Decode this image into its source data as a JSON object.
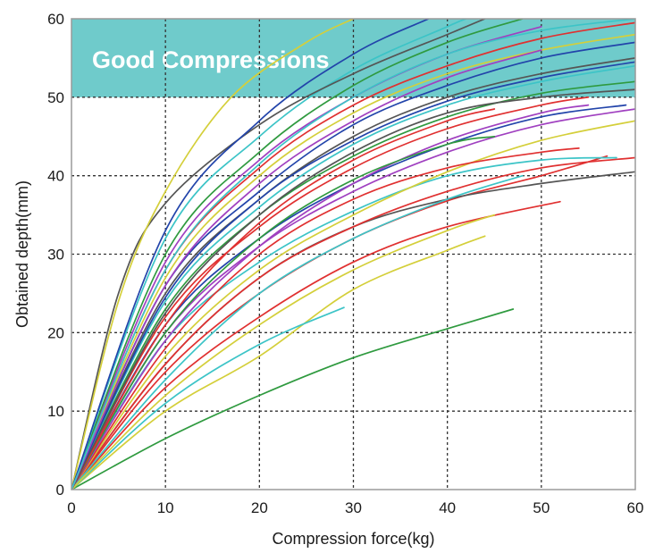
{
  "chart_data": {
    "type": "line",
    "title": "",
    "xlabel": "Compression force(kg)",
    "ylabel": "Obtained depth(mm)",
    "xlim": [
      0,
      60
    ],
    "ylim": [
      0,
      60
    ],
    "xticks": [
      0,
      10,
      20,
      30,
      40,
      50,
      60
    ],
    "yticks": [
      0,
      10,
      20,
      30,
      40,
      50,
      60
    ],
    "grid": true,
    "legend": "none",
    "annotation": {
      "text": "Good Compressions",
      "y_from": 50,
      "y_to": 60,
      "color": "#6fcbcb"
    },
    "series": [
      {
        "color": "#2f9a3f",
        "points": [
          [
            0,
            0
          ],
          [
            10,
            6.5
          ],
          [
            20,
            12
          ],
          [
            30,
            16.8
          ],
          [
            40,
            20.5
          ],
          [
            47,
            23
          ]
        ]
      },
      {
        "color": "#d4cf3a",
        "points": [
          [
            0,
            0
          ],
          [
            10,
            10
          ],
          [
            20,
            17
          ],
          [
            30,
            25.5
          ],
          [
            40,
            30.5
          ],
          [
            44,
            32.3
          ]
        ]
      },
      {
        "color": "#3cc4c7",
        "points": [
          [
            0,
            0
          ],
          [
            10,
            11
          ],
          [
            20,
            18.5
          ],
          [
            29,
            23.2
          ]
        ]
      },
      {
        "color": "#e03030",
        "points": [
          [
            0,
            0
          ],
          [
            10,
            13
          ],
          [
            20,
            22
          ],
          [
            30,
            29
          ],
          [
            40,
            33.5
          ],
          [
            52,
            36.7
          ]
        ]
      },
      {
        "color": "#e03030",
        "points": [
          [
            0,
            0
          ],
          [
            10,
            15
          ],
          [
            20,
            25
          ],
          [
            30,
            32
          ],
          [
            40,
            36.8
          ],
          [
            50,
            40
          ],
          [
            57,
            42.5
          ]
        ]
      },
      {
        "color": "#555555",
        "points": [
          [
            0,
            0
          ],
          [
            10,
            16
          ],
          [
            20,
            27
          ],
          [
            30,
            33.5
          ],
          [
            40,
            37
          ],
          [
            50,
            39
          ],
          [
            60,
            40.5
          ]
        ]
      },
      {
        "color": "#e03030",
        "points": [
          [
            0,
            0
          ],
          [
            10,
            16
          ],
          [
            20,
            27
          ],
          [
            30,
            33.5
          ],
          [
            40,
            38
          ],
          [
            50,
            41
          ],
          [
            60,
            42.3
          ]
        ]
      },
      {
        "color": "#3cc4c7",
        "points": [
          [
            0,
            0
          ],
          [
            10,
            19
          ],
          [
            20,
            29
          ],
          [
            30,
            35.5
          ],
          [
            40,
            40
          ],
          [
            50,
            42
          ],
          [
            58,
            42.3
          ]
        ]
      },
      {
        "color": "#d4cf3a",
        "points": [
          [
            0,
            0
          ],
          [
            10,
            17
          ],
          [
            20,
            28
          ],
          [
            30,
            35
          ],
          [
            40,
            40.5
          ],
          [
            50,
            44.5
          ],
          [
            60,
            47
          ]
        ]
      },
      {
        "color": "#a040c0",
        "points": [
          [
            0,
            0
          ],
          [
            10,
            20
          ],
          [
            20,
            31
          ],
          [
            30,
            38
          ],
          [
            40,
            43
          ],
          [
            50,
            46.5
          ],
          [
            60,
            48.5
          ]
        ]
      },
      {
        "color": "#2244aa",
        "points": [
          [
            0,
            0
          ],
          [
            10,
            21
          ],
          [
            20,
            32
          ],
          [
            30,
            39
          ],
          [
            40,
            44
          ],
          [
            50,
            47.5
          ],
          [
            59,
            49
          ]
        ]
      },
      {
        "color": "#e03030",
        "points": [
          [
            0,
            0
          ],
          [
            10,
            22
          ],
          [
            20,
            33.5
          ],
          [
            30,
            41
          ],
          [
            40,
            46
          ],
          [
            50,
            49
          ],
          [
            55,
            50
          ]
        ]
      },
      {
        "color": "#2f9a3f",
        "points": [
          [
            0,
            0
          ],
          [
            10,
            23
          ],
          [
            20,
            35
          ],
          [
            30,
            42.5
          ],
          [
            40,
            47.5
          ],
          [
            50,
            50.5
          ],
          [
            60,
            52
          ]
        ]
      },
      {
        "color": "#3cc4c7",
        "points": [
          [
            0,
            0
          ],
          [
            10,
            24
          ],
          [
            20,
            36
          ],
          [
            30,
            44
          ],
          [
            40,
            49
          ],
          [
            50,
            52
          ],
          [
            60,
            54
          ]
        ]
      },
      {
        "color": "#555555",
        "points": [
          [
            0,
            0
          ],
          [
            10,
            25
          ],
          [
            20,
            37
          ],
          [
            30,
            45
          ],
          [
            40,
            50
          ],
          [
            50,
            53
          ],
          [
            60,
            55
          ]
        ]
      },
      {
        "color": "#2244aa",
        "points": [
          [
            0,
            0
          ],
          [
            10,
            26
          ],
          [
            20,
            38
          ],
          [
            30,
            46.5
          ],
          [
            40,
            51.5
          ],
          [
            50,
            55
          ],
          [
            60,
            57
          ]
        ]
      },
      {
        "color": "#d4cf3a",
        "points": [
          [
            0,
            0
          ],
          [
            10,
            27
          ],
          [
            20,
            40
          ],
          [
            30,
            48
          ],
          [
            40,
            53
          ],
          [
            50,
            56
          ],
          [
            60,
            58
          ]
        ]
      },
      {
        "color": "#e03030",
        "points": [
          [
            0,
            0
          ],
          [
            10,
            28
          ],
          [
            20,
            41
          ],
          [
            30,
            49
          ],
          [
            40,
            54
          ],
          [
            50,
            57.5
          ],
          [
            60,
            59.5
          ]
        ]
      },
      {
        "color": "#a040c0",
        "points": [
          [
            0,
            0
          ],
          [
            10,
            29
          ],
          [
            20,
            42
          ],
          [
            30,
            50
          ],
          [
            40,
            55.5
          ],
          [
            50,
            59
          ]
        ]
      },
      {
        "color": "#2f9a3f",
        "points": [
          [
            0,
            0
          ],
          [
            10,
            30
          ],
          [
            20,
            43
          ],
          [
            30,
            51.5
          ],
          [
            40,
            57
          ],
          [
            48,
            60
          ]
        ]
      },
      {
        "color": "#3cc4c7",
        "points": [
          [
            0,
            0
          ],
          [
            10,
            32
          ],
          [
            20,
            45
          ],
          [
            30,
            53.5
          ],
          [
            40,
            59
          ],
          [
            42,
            60
          ]
        ]
      },
      {
        "color": "#555555",
        "points": [
          [
            0,
            0
          ],
          [
            5,
            25
          ],
          [
            10,
            36.5
          ],
          [
            20,
            46.5
          ],
          [
            30,
            53
          ],
          [
            40,
            58
          ],
          [
            44,
            60
          ]
        ]
      },
      {
        "color": "#d4cf3a",
        "points": [
          [
            0,
            0
          ],
          [
            5,
            24
          ],
          [
            10,
            38
          ],
          [
            17,
            50
          ],
          [
            25,
            57
          ],
          [
            30,
            60
          ]
        ]
      },
      {
        "color": "#2244aa",
        "points": [
          [
            0,
            0
          ],
          [
            10,
            33
          ],
          [
            20,
            47
          ],
          [
            30,
            55.5
          ],
          [
            38,
            60
          ]
        ]
      },
      {
        "color": "#e03030",
        "points": [
          [
            0,
            0
          ],
          [
            10,
            18
          ],
          [
            20,
            30
          ],
          [
            30,
            37
          ],
          [
            40,
            41
          ],
          [
            50,
            43
          ],
          [
            54,
            43.5
          ]
        ]
      },
      {
        "color": "#a040c0",
        "points": [
          [
            0,
            0
          ],
          [
            10,
            19
          ],
          [
            20,
            31
          ],
          [
            30,
            39
          ],
          [
            40,
            44.5
          ],
          [
            50,
            48
          ],
          [
            55,
            49
          ]
        ]
      },
      {
        "color": "#2f9a3f",
        "points": [
          [
            0,
            0
          ],
          [
            10,
            20
          ],
          [
            20,
            32
          ],
          [
            30,
            39.5
          ],
          [
            40,
            44
          ],
          [
            45,
            45
          ]
        ]
      },
      {
        "color": "#3cc4c7",
        "points": [
          [
            0,
            0
          ],
          [
            10,
            14
          ],
          [
            20,
            25
          ],
          [
            30,
            32
          ],
          [
            40,
            37
          ],
          [
            48,
            40
          ]
        ]
      },
      {
        "color": "#d4cf3a",
        "points": [
          [
            0,
            0
          ],
          [
            10,
            12
          ],
          [
            20,
            21
          ],
          [
            30,
            28
          ],
          [
            40,
            33
          ],
          [
            45,
            35
          ]
        ]
      },
      {
        "color": "#2244aa",
        "points": [
          [
            0,
            0
          ],
          [
            10,
            24.5
          ],
          [
            20,
            37
          ],
          [
            30,
            44.5
          ],
          [
            40,
            49.5
          ],
          [
            50,
            52.5
          ],
          [
            60,
            54.5
          ]
        ]
      },
      {
        "color": "#e03030",
        "points": [
          [
            0,
            0
          ],
          [
            10,
            21
          ],
          [
            20,
            34
          ],
          [
            30,
            42
          ],
          [
            40,
            47
          ],
          [
            45,
            48.5
          ]
        ]
      },
      {
        "color": "#555555",
        "points": [
          [
            0,
            0
          ],
          [
            10,
            22.5
          ],
          [
            20,
            35
          ],
          [
            30,
            43
          ],
          [
            40,
            48
          ],
          [
            50,
            50
          ],
          [
            60,
            51
          ]
        ]
      },
      {
        "color": "#a040c0",
        "points": [
          [
            0,
            0
          ],
          [
            10,
            26
          ],
          [
            20,
            39
          ],
          [
            30,
            47
          ],
          [
            40,
            52.5
          ],
          [
            50,
            56
          ]
        ]
      },
      {
        "color": "#3cc4c7",
        "points": [
          [
            0,
            0
          ],
          [
            10,
            28
          ],
          [
            20,
            41.5
          ],
          [
            30,
            50
          ],
          [
            40,
            55.5
          ],
          [
            50,
            58.5
          ],
          [
            60,
            60
          ]
        ]
      }
    ]
  }
}
